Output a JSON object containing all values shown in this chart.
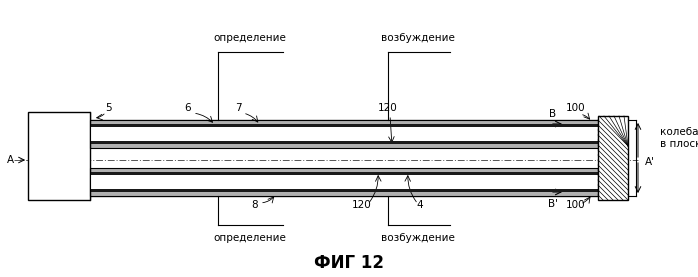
{
  "bg_color": "#ffffff",
  "title": "ФИГ 12",
  "title_fontsize": 12,
  "fig_width": 6.98,
  "fig_height": 2.77,
  "dpi": 100,
  "labels": {
    "opredelenie_top": "определение",
    "vozbuzhdenie_top": "возбуждение",
    "kolebaniya": "колебания\nв плоскости",
    "opredelenie_bot": "определение",
    "vozbuzhdenie_bot": "возбуждение",
    "num5": "5",
    "num6": "6",
    "num7": "7",
    "num120_top": "120",
    "num120_bot": "120",
    "numB": "B",
    "numBp": "B'",
    "num100_top": "100",
    "num100_bot": "100",
    "num8": "8",
    "num4": "4",
    "A_left": "A",
    "A_right": "A'"
  },
  "font_size_label": 7.5,
  "font_size_num": 7.5,
  "line_color": "#000000"
}
